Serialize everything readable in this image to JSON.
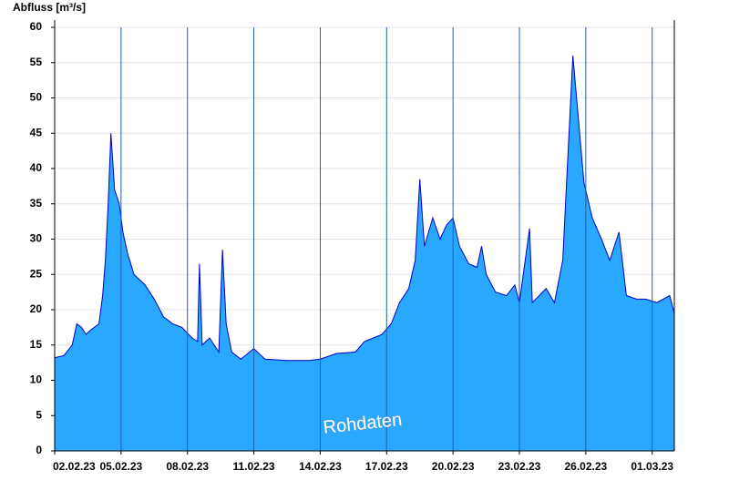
{
  "chart_data": {
    "type": "area",
    "ylabel": "Abfluss [m³/s]",
    "annotation": "Rohdaten",
    "color": "#2aa8ff",
    "line_color": "#0000cc",
    "x": [
      "2023-02-02T00:00",
      "2023-02-02T10:00",
      "2023-02-02T19:00",
      "2023-02-03T00:00",
      "2023-02-03T05:00",
      "2023-02-03T10:00",
      "2023-02-03T14:00",
      "2023-02-04T00:00",
      "2023-02-04T04:00",
      "2023-02-04T07:00",
      "2023-02-04T10:00",
      "2023-02-04T13:00",
      "2023-02-04T17:00",
      "2023-02-04T22:00",
      "2023-02-05T02:00",
      "2023-02-05T07:00",
      "2023-02-05T14:00",
      "2023-02-06T02:00",
      "2023-02-06T12:00",
      "2023-02-06T22:00",
      "2023-02-07T08:00",
      "2023-02-07T18:00",
      "2023-02-08T05:00",
      "2023-02-08T11:00",
      "2023-02-08T13:00",
      "2023-02-08T16:00",
      "2023-02-09T00:00",
      "2023-02-09T10:00",
      "2023-02-09T14:00",
      "2023-02-09T18:00",
      "2023-02-10T00:00",
      "2023-02-10T10:00",
      "2023-02-11T00:00",
      "2023-02-11T12:00",
      "2023-02-12T12:00",
      "2023-02-13T12:00",
      "2023-02-14T00:00",
      "2023-02-14T18:00",
      "2023-02-15T14:00",
      "2023-02-16T00:00",
      "2023-02-16T19:00",
      "2023-02-17T05:00",
      "2023-02-17T14:00",
      "2023-02-18T00:00",
      "2023-02-18T07:00",
      "2023-02-18T12:00",
      "2023-02-18T17:00",
      "2023-02-19T02:00",
      "2023-02-19T10:00",
      "2023-02-19T17:00",
      "2023-02-20T00:00",
      "2023-02-20T07:00",
      "2023-02-20T17:00",
      "2023-02-21T02:00",
      "2023-02-21T07:00",
      "2023-02-21T12:00",
      "2023-02-21T22:00",
      "2023-02-22T10:00",
      "2023-02-22T19:00",
      "2023-02-23T00:00",
      "2023-02-23T11:00",
      "2023-02-23T14:00",
      "2023-02-24T05:00",
      "2023-02-24T14:00",
      "2023-02-24T23:00",
      "2023-02-25T02:00",
      "2023-02-25T10:00",
      "2023-02-25T14:00",
      "2023-02-25T22:00",
      "2023-02-26T07:00",
      "2023-02-26T17:00",
      "2023-02-27T02:00",
      "2023-02-27T07:00",
      "2023-02-27T12:00",
      "2023-02-27T20:00",
      "2023-02-28T07:00",
      "2023-02-28T17:00",
      "2023-03-01T05:00",
      "2023-03-01T19:00",
      "2023-03-02T00:00"
    ],
    "values": [
      13.2,
      13.5,
      15,
      18,
      17.5,
      16.5,
      17,
      18,
      22,
      27,
      35,
      45,
      37,
      35,
      31,
      28,
      25,
      23.5,
      21.5,
      19,
      18,
      17.5,
      16,
      15.5,
      26.5,
      15,
      16,
      14,
      28.5,
      18,
      14,
      13,
      14.5,
      13,
      12.8,
      12.8,
      13,
      13.8,
      14,
      15.5,
      16.5,
      18,
      21,
      23,
      27,
      38.5,
      29,
      33,
      30,
      32,
      33,
      29,
      26.5,
      26,
      29,
      25,
      22.5,
      22,
      23.5,
      21,
      31.5,
      21,
      23,
      21,
      27,
      35,
      56,
      50,
      38,
      33,
      30,
      27,
      29,
      31,
      22,
      21.5,
      21.5,
      21,
      22,
      19.5
    ],
    "xlim": [
      "2023-02-02T00:00",
      "2023-03-02T00:00"
    ],
    "xticks": [
      {
        "value": "2023-02-02T00:00",
        "label": "02.02.23"
      },
      {
        "value": "2023-02-05T00:00",
        "label": "05.02.23"
      },
      {
        "value": "2023-02-08T00:00",
        "label": "08.02.23"
      },
      {
        "value": "2023-02-11T00:00",
        "label": "11.02.23"
      },
      {
        "value": "2023-02-14T00:00",
        "label": "14.02.23"
      },
      {
        "value": "2023-02-17T00:00",
        "label": "17.02.23"
      },
      {
        "value": "2023-02-20T00:00",
        "label": "20.02.23"
      },
      {
        "value": "2023-02-23T00:00",
        "label": "23.02.23"
      },
      {
        "value": "2023-02-26T00:00",
        "label": "26.02.23"
      },
      {
        "value": "2023-03-01T00:00",
        "label": "01.03.23"
      }
    ],
    "ylim": [
      0,
      60
    ],
    "yticks": [
      0,
      5,
      10,
      15,
      20,
      25,
      30,
      35,
      40,
      45,
      50,
      55,
      60
    ],
    "grid": true
  }
}
